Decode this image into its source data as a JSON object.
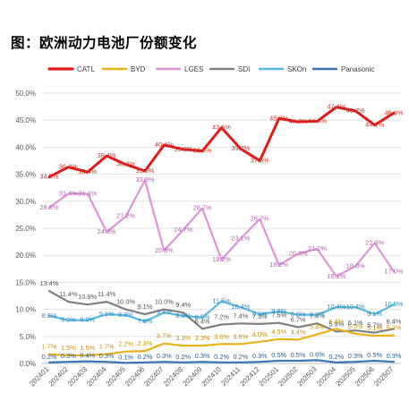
{
  "title": "图：欧洲动力电池厂份额变化",
  "chart_data": {
    "type": "line",
    "title": "图：欧洲动力电池厂份额变化",
    "xlabel": "",
    "ylabel": "",
    "ylim": [
      0,
      50
    ],
    "y_ticks": [
      "0.0%",
      "5.0%",
      "10.0%",
      "15.0%",
      "20.0%",
      "25.0%",
      "30.0%",
      "35.0%",
      "40.0%",
      "45.0%",
      "50.0%"
    ],
    "grid": "horizontal",
    "legend": "top",
    "x": [
      "202401",
      "202402",
      "202403",
      "202404",
      "202405",
      "202406",
      "202407",
      "202408",
      "202409",
      "202410",
      "202411",
      "202412",
      "202501",
      "202502",
      "202503",
      "202504",
      "202505",
      "202506",
      "202507"
    ],
    "series": [
      {
        "name": "CATL",
        "color": "#e31a1c",
        "values": [
          34.5,
          36.3,
          35.4,
          38.4,
          36.8,
          35.6,
          40.4,
          39.6,
          39.3,
          43.6,
          39.7,
          37.5,
          45.3,
          44.7,
          44.8,
          47.4,
          46.7,
          44.1,
          46.3
        ],
        "labels": [
          "34.5%",
          "36.3%",
          "35.4%",
          "38.4%",
          "36.8%",
          "35.6%",
          "40.4%",
          "39.6%",
          "39.3%",
          "43.6%",
          "39.7%",
          "37.5%",
          "45.3%",
          "44.7%",
          "44.8%",
          "47.4%",
          "46.7%",
          "44.1%",
          "46.3%"
        ]
      },
      {
        "name": "BYD",
        "color": "#e8b319",
        "values": [
          1.7,
          1.5,
          1.5,
          1.7,
          2.2,
          2.3,
          3.7,
          3.3,
          3.3,
          3.6,
          3.6,
          4.0,
          4.5,
          4.4,
          5.4,
          6.4,
          5.5,
          5.1,
          5.2
        ],
        "labels": [
          "1.7%",
          "1.5%",
          "1.5%",
          "1.7%",
          "2.2%",
          "2.3%",
          "3.7%",
          "3.3%",
          "3.3%",
          "3.6%",
          "3.6%",
          "4.0%",
          "4.5%",
          "4.4%",
          "5.4%",
          "6.4%",
          "5.5%",
          "5.1%",
          "5.2%"
        ]
      },
      {
        "name": "LGES",
        "color": "#dc96d8",
        "values": [
          28.8,
          31.4,
          31.4,
          24.3,
          27.2,
          33.9,
          20.9,
          24.7,
          28.7,
          19.2,
          23.1,
          26.7,
          18.2,
          20.3,
          21.2,
          16.1,
          18.0,
          22.3,
          17.0
        ],
        "labels": [
          "28.8%",
          "31.4%",
          "31.4%",
          "24.3%",
          "27.2%",
          "33.9%",
          "20.9%",
          "24.7%",
          "28.7%",
          "19.2%",
          "23.1%",
          "26.7%",
          "18.2%",
          "20.3%",
          "21.2%",
          "16.1%",
          "18.0%",
          "22.3%",
          "17.0%"
        ]
      },
      {
        "name": "SDI",
        "color": "#808080",
        "values": [
          13.4,
          11.4,
          10.9,
          11.4,
          10.0,
          9.1,
          10.0,
          9.4,
          6.4,
          7.2,
          7.4,
          7.3,
          7.5,
          6.7,
          7.4,
          5.9,
          6.1,
          5.7,
          6.4
        ],
        "labels": [
          "13.4%",
          "11.4%",
          "10.9%",
          "11.4%",
          "10.0%",
          "9.1%",
          "10.0%",
          "9.4%",
          "6.4%",
          "7.2%",
          "7.4%",
          "7.3%",
          "7.5%",
          "6.7%",
          "7.4%",
          "5.9%",
          "6.1%",
          "5.7%",
          "6.4%"
        ]
      },
      {
        "name": "SKOn",
        "color": "#5bb8e2",
        "values": [
          8.8,
          8.0,
          8.0,
          9.1,
          8.9,
          7.8,
          9.4,
          8.8,
          8.5,
          11.5,
          10.4,
          9.1,
          9.6,
          9.0,
          9.0,
          10.4,
          10.4,
          9.1,
          10.9
        ],
        "labels": [
          "8.8%",
          "8.0%",
          "8.0%",
          "9.1%",
          "8.9%",
          "7.8%",
          "9.4%",
          "8.8%",
          "8.5%",
          "11.5%",
          "10.4%",
          "9.1%",
          "9.6%",
          "9.0%",
          "9.0%",
          "10.4%",
          "10.4%",
          "9.1%",
          "10.9%"
        ]
      },
      {
        "name": "Panasonic",
        "color": "#3a75b6",
        "values": [
          0.2,
          0.3,
          0.4,
          0.3,
          0.1,
          0.2,
          0.3,
          0.2,
          0.3,
          0.2,
          0.2,
          0.3,
          0.5,
          0.5,
          0.6,
          0.2,
          0.3,
          0.5,
          0.3
        ],
        "labels": [
          "0.2%",
          "0.3%",
          "0.4%",
          "0.3%",
          "0.1%",
          "0.2%",
          "0.3%",
          "0.2%",
          "0.3%",
          "0.2%",
          "0.2%",
          "0.3%",
          "0.5%",
          "0.5%",
          "0.6%",
          "0.2%",
          "0.3%",
          "0.5%",
          "0.3%"
        ]
      }
    ]
  }
}
